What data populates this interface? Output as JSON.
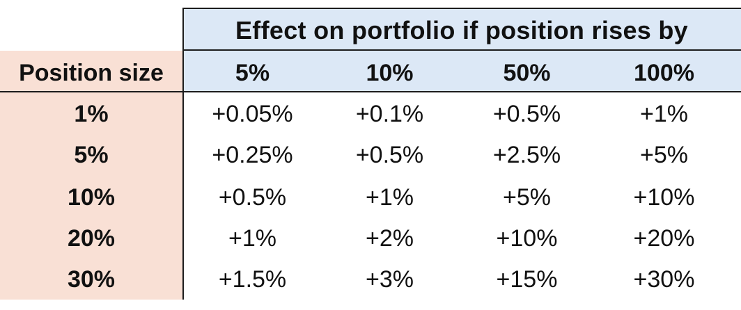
{
  "table": {
    "group_header": "Effect on portfolio if position rises by",
    "row_header_label": "Position size",
    "columns": [
      "5%",
      "10%",
      "50%",
      "100%"
    ],
    "rows": [
      {
        "size": "1%",
        "values": [
          "+0.05%",
          "+0.1%",
          "+0.5%",
          "+1%"
        ]
      },
      {
        "size": "5%",
        "values": [
          "+0.25%",
          "+0.5%",
          "+2.5%",
          "+5%"
        ]
      },
      {
        "size": "10%",
        "values": [
          "+0.5%",
          "+1%",
          "+5%",
          "+10%"
        ]
      },
      {
        "size": "20%",
        "values": [
          "+1%",
          "+2%",
          "+10%",
          "+20%"
        ]
      },
      {
        "size": "30%",
        "values": [
          "+1.5%",
          "+3%",
          "+15%",
          "+30%"
        ]
      }
    ]
  },
  "colors": {
    "header_fill": "#dce8f6",
    "row_label_fill": "#f9e0d5",
    "rule": "#1c1c1c"
  }
}
